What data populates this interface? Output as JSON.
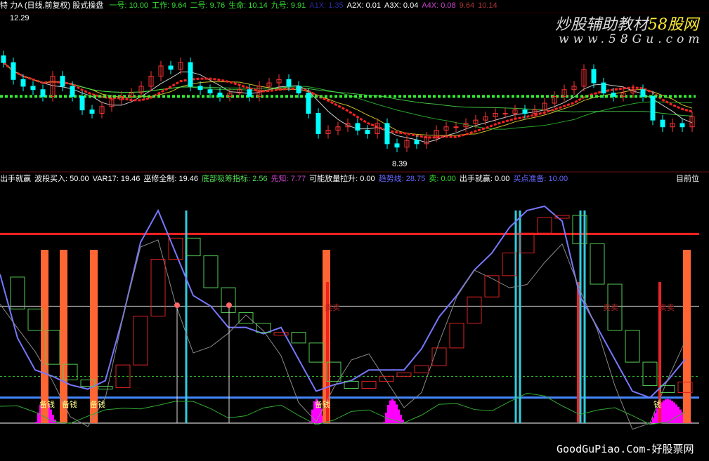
{
  "top_header": {
    "title": "特 力A (日线,前复权) 股式操盘",
    "items": [
      {
        "label": "一号",
        "value": "10.00",
        "color": "#33dd33"
      },
      {
        "label": "工作",
        "value": "9.64",
        "color": "#33dd33"
      },
      {
        "label": "二号",
        "value": "9.76",
        "color": "#33dd33"
      },
      {
        "label": "生命",
        "value": "10.14",
        "color": "#33dd33"
      },
      {
        "label": "九号",
        "value": "9.91",
        "color": "#33dd33"
      },
      {
        "label": "A1X",
        "value": "1.35",
        "color": "#2a2a9a"
      },
      {
        "label": "A2X",
        "value": "0.01",
        "color": "#ffffff"
      },
      {
        "label": "A3X",
        "value": "0.04",
        "color": "#ffffff"
      },
      {
        "label": "A4X",
        "value": "0.08",
        "color": "#cc44cc"
      },
      {
        "label": "",
        "value": "9.64",
        "color": "#aa3333"
      },
      {
        "label": "",
        "value": "10.14",
        "color": "#aa3333"
      }
    ]
  },
  "indicator_header": {
    "items": [
      {
        "label": "出手就赢",
        "value": "",
        "color": "#ffffff"
      },
      {
        "label": "波段买入",
        "value": "50.00",
        "color": "#ffffff"
      },
      {
        "label": "VAR17",
        "value": "19.46",
        "color": "#ffffff"
      },
      {
        "label": "巫修全制",
        "value": "19.46",
        "color": "#ffffff"
      },
      {
        "label": "底部吸筹指标",
        "value": "2.56",
        "color": "#55dd55"
      },
      {
        "label": "先知",
        "value": "7.77",
        "color": "#cc44cc"
      },
      {
        "label": "可能放量拉升",
        "value": "0.00",
        "color": "#ffffff"
      },
      {
        "label": "趋势线",
        "value": "28.75",
        "color": "#6666ff"
      },
      {
        "label": "卖",
        "value": "0.00",
        "color": "#33dd33"
      },
      {
        "label": "出手就赢",
        "value": "0.00",
        "color": "#ffffff"
      },
      {
        "label": "买点准备",
        "value": "10.00",
        "color": "#6666ff"
      }
    ],
    "right_label": "目前位"
  },
  "watermark": {
    "title": "炒股辅助教材",
    "brand": "58股网",
    "url": "www.58Gu.com",
    "footer": "GoodGuPiao.Com-好股票网"
  },
  "annotations": {
    "high": "12.29",
    "low": "8.39",
    "buy_label": "备钱",
    "buy_label_alt": "钱",
    "sell_label": "卖卖"
  },
  "colors": {
    "up": "#ff3333",
    "down": "#00ffff",
    "ma_green": "#33cc33",
    "indicator_blue": "#7777ff",
    "bar_orange": "#ff6633",
    "magenta": "#ff00ff",
    "cyan": "#33ccdd"
  },
  "chart_data": [
    {
      "type": "candlestick",
      "title": "特 力A (日线,前复权)",
      "ylim": [
        8.39,
        12.29
      ],
      "close": [
        11.0,
        10.5,
        10.3,
        10.2,
        10.0,
        10.6,
        10.3,
        10.0,
        9.6,
        9.5,
        9.7,
        9.9,
        10.0,
        10.1,
        10.3,
        10.6,
        10.9,
        10.8,
        11.0,
        10.3,
        10.2,
        10.1,
        10.0,
        10.1,
        10.2,
        10.0,
        10.3,
        10.4,
        10.5,
        10.3,
        10.1,
        9.5,
        8.9,
        9.0,
        9.1,
        9.2,
        9.0,
        8.9,
        9.2,
        8.6,
        8.5,
        8.7,
        8.6,
        8.8,
        9.0,
        9.1,
        9.1,
        9.2,
        9.3,
        9.4,
        9.5,
        9.5,
        9.6,
        9.5,
        9.6,
        9.8,
        10.0,
        10.2,
        10.3,
        10.8,
        10.4,
        10.1,
        10.0,
        10.1,
        10.2,
        10.0,
        9.3,
        9.1,
        9.2,
        9.1,
        9.4
      ],
      "level_line": 10.0
    },
    {
      "type": "line",
      "ylim": [
        0,
        100
      ],
      "series": [
        {
          "name": "趋势线",
          "values": [
            70,
            40,
            25,
            22,
            18,
            16,
            20,
            50,
            85,
            100,
            80,
            60,
            55,
            45,
            45,
            42,
            45,
            30,
            15,
            18,
            20,
            25,
            25,
            25,
            35,
            50,
            60,
            72,
            80,
            92,
            100,
            102,
            95,
            60,
            45,
            30,
            15,
            12,
            20,
            30
          ]
        }
      ],
      "buy_bars_x_index": [
        4,
        6,
        9,
        33,
        69
      ],
      "levels": [
        89,
        55,
        22,
        12,
        0
      ]
    }
  ]
}
